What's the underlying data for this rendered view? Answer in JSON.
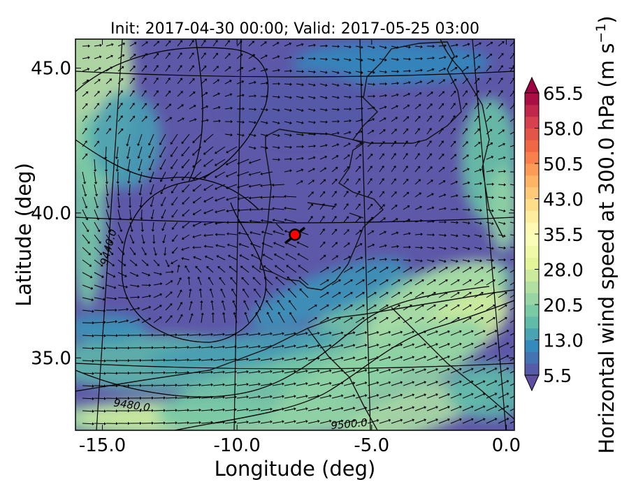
{
  "chart_data": {
    "type": "heatmap",
    "title": "Init: 2017-04-30 00:00; Valid: 2017-05-25 03:00",
    "xlabel": "Longitude (deg)",
    "ylabel": "Latitude (deg)",
    "xlim": [
      -16.0,
      0.3
    ],
    "ylim": [
      32.5,
      46.0
    ],
    "x_ticks": [
      "-15.0",
      "-10.0",
      "-5.0",
      "0.0"
    ],
    "y_ticks": [
      "35.0",
      "40.0",
      "45.0"
    ],
    "colorbar": {
      "label": "Horizontal wind speed at 300.0 hPa (m s$^{-1}$)",
      "label_main": "Horizontal wind speed at 300.0 hPa (m s",
      "label_sup": "−1",
      "label_close": ")",
      "min": 5.5,
      "max": 65.5,
      "step": 2.5,
      "tick_labels": [
        "5.5",
        "13.0",
        "20.5",
        "28.0",
        "35.5",
        "43.0",
        "50.5",
        "58.0",
        "65.5"
      ],
      "extend": "both",
      "colormap": "Spectral_r"
    },
    "contour_labels": [
      "9440.0",
      "9480.0",
      "9500.0"
    ],
    "marker": {
      "lon": -7.7,
      "lat": 39.3,
      "color": "#ff0000"
    },
    "colors": {
      "slow": "#5e4fa2",
      "fast": "#9e0142",
      "mid": "#ffffbf"
    }
  }
}
